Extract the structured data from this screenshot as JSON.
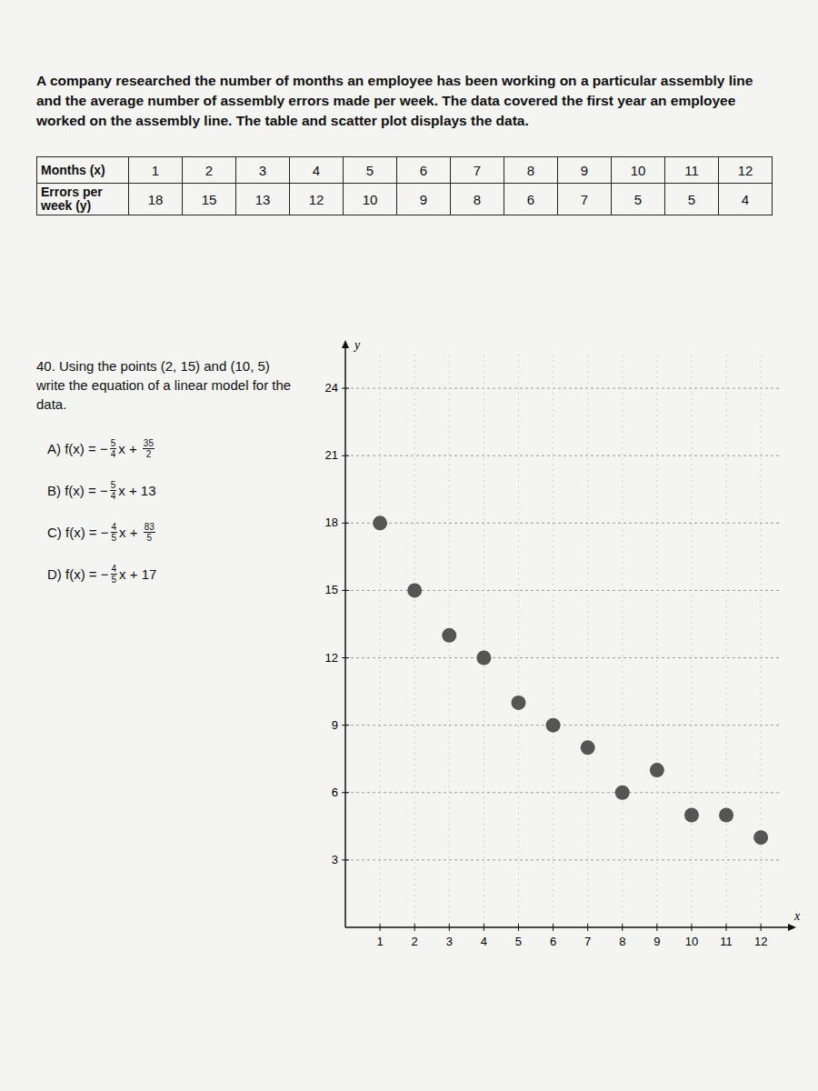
{
  "intro": "A company researched the number of months an employee has been working on a particular assembly line and the average number of assembly errors made per week. The data covered the first year an employee worked on the assembly line. The table and scatter plot displays the data.",
  "table": {
    "rows": [
      {
        "header": "Months (x)",
        "cells": [
          1,
          2,
          3,
          4,
          5,
          6,
          7,
          8,
          9,
          10,
          11,
          12
        ]
      },
      {
        "header": "Errors per week (y)",
        "cells": [
          18,
          15,
          13,
          12,
          10,
          9,
          8,
          6,
          7,
          5,
          5,
          4
        ]
      }
    ]
  },
  "question": "40. Using the points (2, 15) and (10, 5) write the equation of a linear model for the data.",
  "choices": [
    {
      "parts": [
        "A) f(x) = −",
        {
          "num": "5",
          "den": "4"
        },
        "x + ",
        {
          "num": "35",
          "den": "2"
        }
      ]
    },
    {
      "parts": [
        "B) f(x) = −",
        {
          "num": "5",
          "den": "4"
        },
        "x + 13"
      ]
    },
    {
      "parts": [
        "C) f(x) = −",
        {
          "num": "4",
          "den": "5"
        },
        "x + ",
        {
          "num": "83",
          "den": "5"
        }
      ]
    },
    {
      "parts": [
        "D) f(x) = −",
        {
          "num": "4",
          "den": "5"
        },
        "x + 17"
      ]
    }
  ],
  "chart_data": {
    "type": "scatter",
    "x_label": "x",
    "y_label": "y",
    "x": [
      1,
      2,
      3,
      4,
      5,
      6,
      7,
      8,
      9,
      10,
      11,
      12
    ],
    "values": [
      18,
      15,
      13,
      12,
      10,
      9,
      8,
      6,
      7,
      5,
      5,
      4
    ],
    "color": "#555555",
    "marker": "circle",
    "grid": true,
    "xlim": [
      0,
      12.6
    ],
    "ylim": [
      0,
      25.5
    ],
    "xticks": [
      1,
      2,
      3,
      4,
      5,
      6,
      7,
      8,
      9,
      10,
      11,
      12
    ],
    "yticks": [
      3,
      6,
      9,
      12,
      15,
      18,
      21,
      24
    ]
  }
}
